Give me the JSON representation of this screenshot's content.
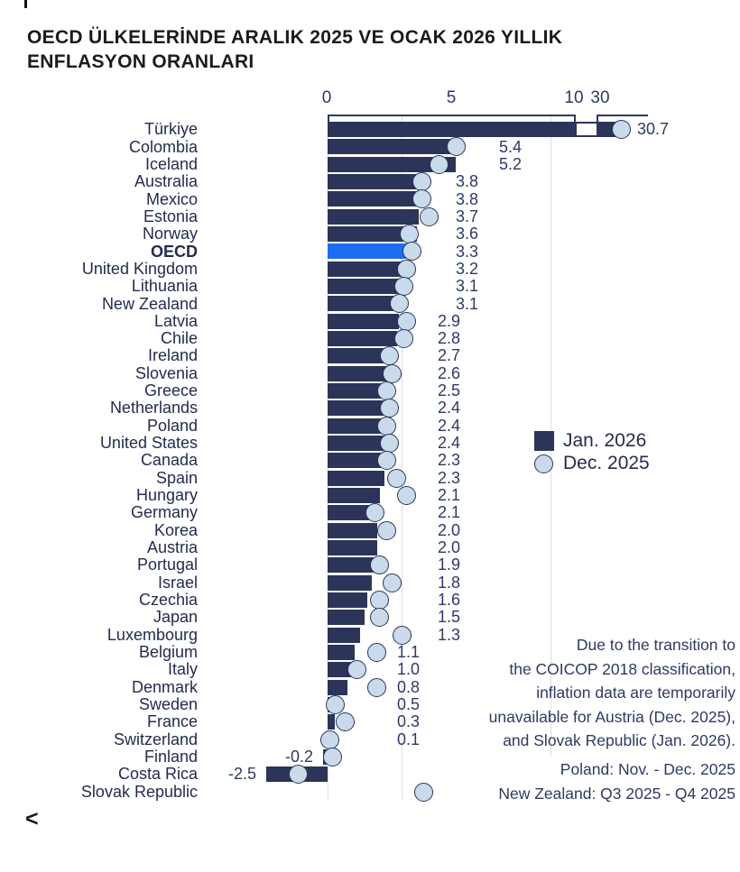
{
  "page": {
    "back_symbol": "<"
  },
  "title": {
    "line1": "OECD ÜLKELERİNDE ARALIK 2025 VE OCAK 2026 YILLIK",
    "line2": "ENFLASYON ORANLARI"
  },
  "colors": {
    "bar_navy": "#2d3459",
    "oecd_highlight_blue": "#1b6ef3",
    "circle_fill": "#c9dbea",
    "circle_stroke": "#2d3459",
    "text_navy": "#2e3a63",
    "gridline": "#d9dde3",
    "title_text": "#1b1b1b"
  },
  "chart_data": {
    "type": "bar",
    "orientation": "horizontal",
    "unit": "annual inflation rate, %",
    "title": "OECD ÜLKELERİNDE ARALIK 2025 VE OCAK 2026 YILLIK ENFLASYON ORANLARI",
    "axis": {
      "ticks": [
        "0",
        "5",
        "10",
        "30"
      ],
      "tick_values": [
        0,
        5,
        10,
        30
      ],
      "axis_break_between": [
        10,
        30
      ],
      "grid": "faint vertical lines",
      "xlim_main": [
        -3,
        10
      ]
    },
    "legend": [
      {
        "label": "Jan. 2026",
        "marker": "square",
        "color": "#2d3459"
      },
      {
        "label": "Dec. 2025",
        "marker": "circle",
        "color": "#c9dbea"
      }
    ],
    "legend_position": "right-middle",
    "rows": [
      {
        "country": "Türkiye",
        "jan": 30.7,
        "dec_est": 31.1,
        "label": "30.7",
        "highlight": false,
        "broken": true
      },
      {
        "country": "Colombia",
        "jan": 5.4,
        "dec_est": 5.2,
        "label": "5.4",
        "highlight": false,
        "broken": false
      },
      {
        "country": "Iceland",
        "jan": 5.2,
        "dec_est": 4.5,
        "label": "5.2",
        "highlight": false,
        "broken": false
      },
      {
        "country": "Australia",
        "jan": 3.8,
        "dec_est": 3.8,
        "label": "3.8",
        "highlight": false,
        "broken": false
      },
      {
        "country": "Mexico",
        "jan": 3.8,
        "dec_est": 3.8,
        "label": "3.8",
        "highlight": false,
        "broken": false
      },
      {
        "country": "Estonia",
        "jan": 3.7,
        "dec_est": 4.1,
        "label": "3.7",
        "highlight": false,
        "broken": false
      },
      {
        "country": "Norway",
        "jan": 3.6,
        "dec_est": 3.3,
        "label": "3.6",
        "highlight": false,
        "broken": false
      },
      {
        "country": "OECD",
        "jan": 3.3,
        "dec_est": 3.4,
        "label": "3.3",
        "highlight": true,
        "broken": false
      },
      {
        "country": "United Kingdom",
        "jan": 3.2,
        "dec_est": 3.2,
        "label": "3.2",
        "highlight": false,
        "broken": false
      },
      {
        "country": "Lithuania",
        "jan": 3.1,
        "dec_est": 3.1,
        "label": "3.1",
        "highlight": false,
        "broken": false
      },
      {
        "country": "New Zealand",
        "jan": 3.1,
        "dec_est": 2.9,
        "label": "3.1",
        "highlight": false,
        "broken": false
      },
      {
        "country": "Latvia",
        "jan": 2.9,
        "dec_est": 3.2,
        "label": "2.9",
        "highlight": false,
        "broken": false
      },
      {
        "country": "Chile",
        "jan": 2.8,
        "dec_est": 3.1,
        "label": "2.8",
        "highlight": false,
        "broken": false
      },
      {
        "country": "Ireland",
        "jan": 2.7,
        "dec_est": 2.5,
        "label": "2.7",
        "highlight": false,
        "broken": false
      },
      {
        "country": "Slovenia",
        "jan": 2.6,
        "dec_est": 2.6,
        "label": "2.6",
        "highlight": false,
        "broken": false
      },
      {
        "country": "Greece",
        "jan": 2.5,
        "dec_est": 2.4,
        "label": "2.5",
        "highlight": false,
        "broken": false
      },
      {
        "country": "Netherlands",
        "jan": 2.4,
        "dec_est": 2.5,
        "label": "2.4",
        "highlight": false,
        "broken": false
      },
      {
        "country": "Poland",
        "jan": 2.4,
        "dec_est": 2.4,
        "label": "2.4",
        "highlight": false,
        "broken": false
      },
      {
        "country": "United States",
        "jan": 2.4,
        "dec_est": 2.5,
        "label": "2.4",
        "highlight": false,
        "broken": false
      },
      {
        "country": "Canada",
        "jan": 2.3,
        "dec_est": 2.4,
        "label": "2.3",
        "highlight": false,
        "broken": false
      },
      {
        "country": "Spain",
        "jan": 2.3,
        "dec_est": 2.8,
        "label": "2.3",
        "highlight": false,
        "broken": false
      },
      {
        "country": "Hungary",
        "jan": 2.1,
        "dec_est": 3.2,
        "label": "2.1",
        "highlight": false,
        "broken": false
      },
      {
        "country": "Germany",
        "jan": 2.1,
        "dec_est": 1.9,
        "label": "2.1",
        "highlight": false,
        "broken": false
      },
      {
        "country": "Korea",
        "jan": 2.0,
        "dec_est": 2.4,
        "label": "2.0",
        "highlight": false,
        "broken": false
      },
      {
        "country": "Austria",
        "jan": 2.0,
        "dec_est": null,
        "label": "2.0",
        "highlight": false,
        "broken": false
      },
      {
        "country": "Portugal",
        "jan": 1.9,
        "dec_est": 2.1,
        "label": "1.9",
        "highlight": false,
        "broken": false
      },
      {
        "country": "Israel",
        "jan": 1.8,
        "dec_est": 2.6,
        "label": "1.8",
        "highlight": false,
        "broken": false
      },
      {
        "country": "Czechia",
        "jan": 1.6,
        "dec_est": 2.1,
        "label": "1.6",
        "highlight": false,
        "broken": false
      },
      {
        "country": "Japan",
        "jan": 1.5,
        "dec_est": 2.1,
        "label": "1.5",
        "highlight": false,
        "broken": false
      },
      {
        "country": "Luxembourg",
        "jan": 1.3,
        "dec_est": 3.0,
        "label": "1.3",
        "highlight": false,
        "broken": false
      },
      {
        "country": "Belgium",
        "jan": 1.1,
        "dec_est": 2.0,
        "label": "1.1",
        "highlight": false,
        "broken": false
      },
      {
        "country": "Italy",
        "jan": 1.0,
        "dec_est": 1.2,
        "label": "1.0",
        "highlight": false,
        "broken": false
      },
      {
        "country": "Denmark",
        "jan": 0.8,
        "dec_est": 2.0,
        "label": "0.8",
        "highlight": false,
        "broken": false
      },
      {
        "country": "Sweden",
        "jan": 0.5,
        "dec_est": 0.3,
        "label": "0.5",
        "highlight": false,
        "broken": false
      },
      {
        "country": "France",
        "jan": 0.3,
        "dec_est": 0.7,
        "label": "0.3",
        "highlight": false,
        "broken": false
      },
      {
        "country": "Switzerland",
        "jan": 0.1,
        "dec_est": 0.1,
        "label": "0.1",
        "highlight": false,
        "broken": false
      },
      {
        "country": "Finland",
        "jan": -0.2,
        "dec_est": 0.2,
        "label": "-0.2",
        "highlight": false,
        "broken": false
      },
      {
        "country": "Costa Rica",
        "jan": -2.5,
        "dec_est": -1.2,
        "label": "-2.5",
        "highlight": false,
        "broken": false
      },
      {
        "country": "Slovak Republic",
        "jan": null,
        "dec_est": 3.9,
        "label": "",
        "highlight": false,
        "broken": false
      }
    ],
    "notes": [
      "Due to the transition to",
      "the COICOP 2018 classification,",
      "inflation data are temporarily",
      "unavailable for Austria (Dec. 2025),",
      "and Slovak Republic (Jan. 2026)."
    ],
    "footnotes": [
      "Poland: Nov. - Dec. 2025",
      "New Zealand: Q3 2025 - Q4 2025"
    ]
  }
}
